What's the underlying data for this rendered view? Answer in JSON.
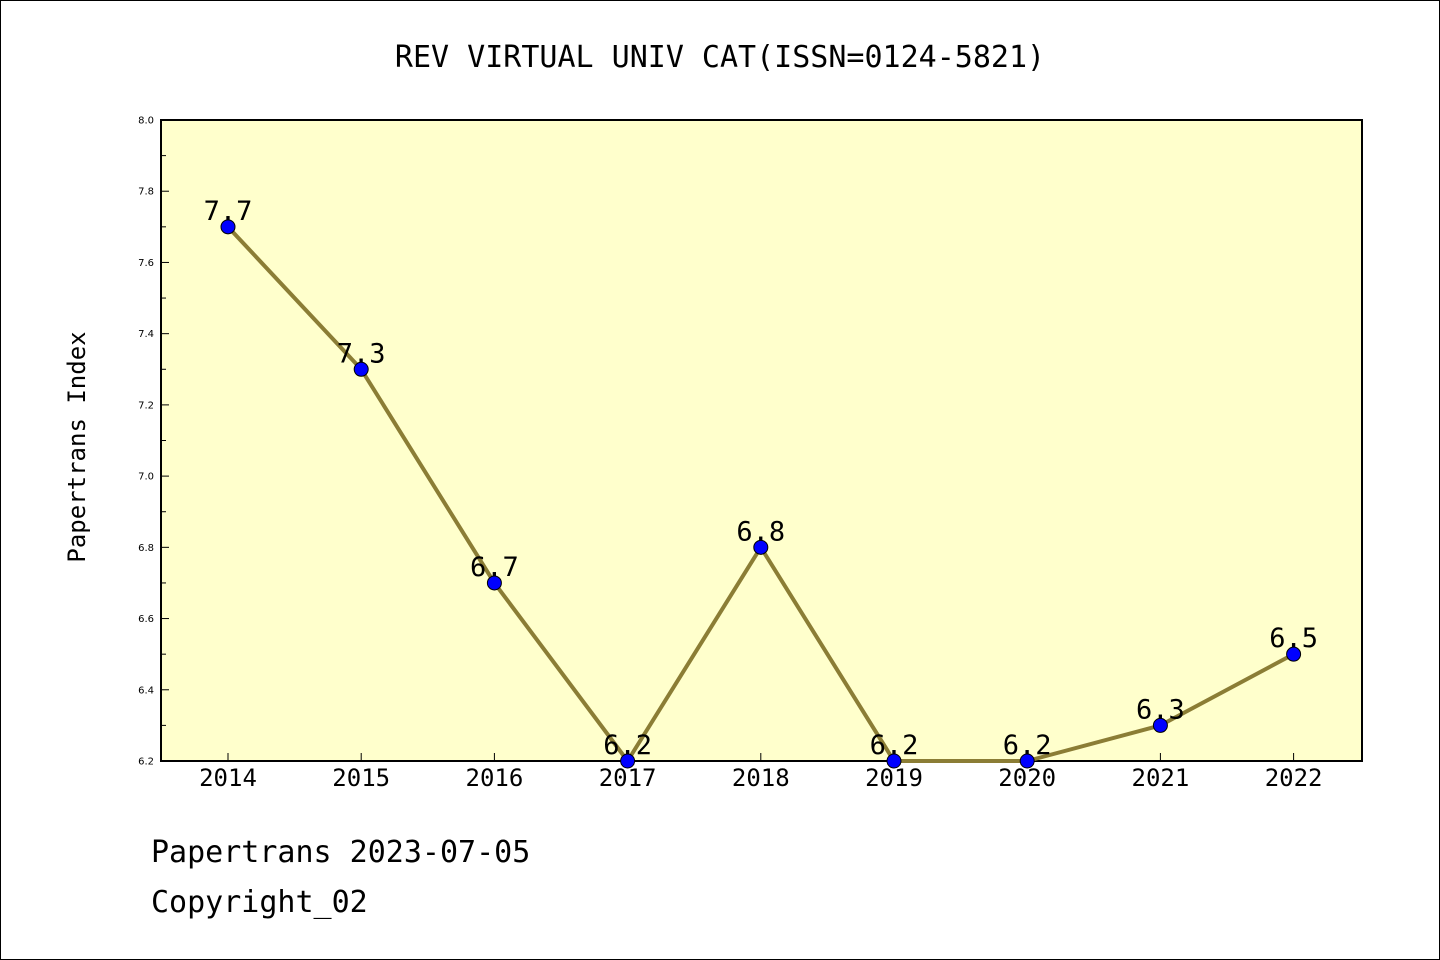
{
  "chart_data": {
    "type": "line",
    "title": "REV VIRTUAL UNIV CAT(ISSN=0124-5821)",
    "ylabel": "Papertrans Index",
    "xlabel": "",
    "categories": [
      "2014",
      "2015",
      "2016",
      "2017",
      "2018",
      "2019",
      "2020",
      "2021",
      "2022"
    ],
    "series": [
      {
        "values": [
          7.7,
          7.3,
          6.7,
          6.2,
          6.8,
          6.2,
          6.2,
          6.3,
          6.5
        ],
        "data_labels": [
          "7.7",
          "7.3",
          "6.7",
          "6.2",
          "6.8",
          "6.2",
          "6.2",
          "6.3",
          "6.5"
        ]
      }
    ],
    "ylim": [
      6.2,
      8.0
    ],
    "yticks": [
      "6.2",
      "6.4",
      "6.6",
      "6.8",
      "7.0",
      "7.2",
      "7.4",
      "7.6",
      "7.8",
      "8.0"
    ],
    "grid": false,
    "colors": {
      "plot_background": "#ffffcc",
      "line": "#8b7d35",
      "marker": "#0000ff"
    }
  },
  "footer": {
    "date_text": "Papertrans 2023-07-05",
    "copyright_text": "Copyright_02"
  }
}
